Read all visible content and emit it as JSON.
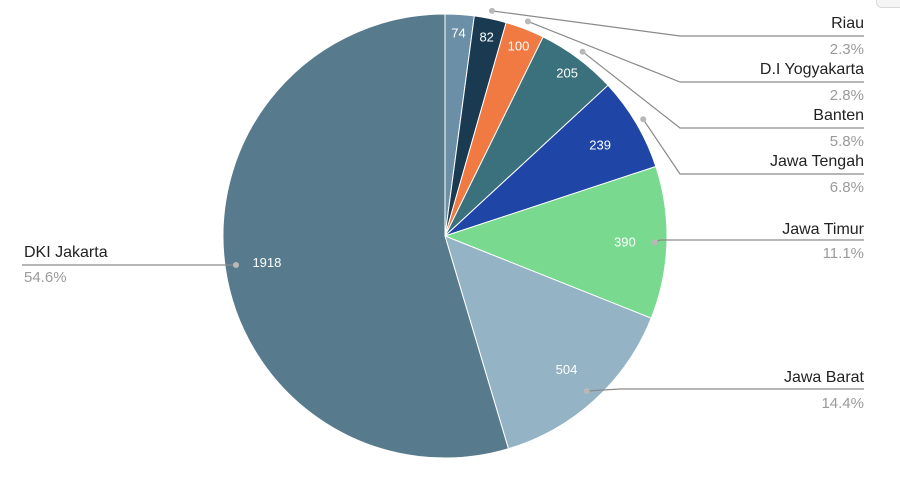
{
  "chart_data": {
    "type": "pie",
    "title": "",
    "slices": [
      {
        "label": "",
        "value": 74,
        "percent": "",
        "color": "#6a8fa6"
      },
      {
        "label": "Riau",
        "value": 82,
        "percent": "2.3%",
        "color": "#1a3a52"
      },
      {
        "label": "D.I Yogyakarta",
        "value": 100,
        "percent": "2.8%",
        "color": "#f07a42"
      },
      {
        "label": "Banten",
        "value": 205,
        "percent": "5.8%",
        "color": "#3a717c"
      },
      {
        "label": "Jawa Tengah",
        "value": 239,
        "percent": "6.8%",
        "color": "#1f46a6"
      },
      {
        "label": "Jawa Timur",
        "value": 390,
        "percent": "11.1%",
        "color": "#78d98f"
      },
      {
        "label": "Jawa Barat",
        "value": 504,
        "percent": "14.4%",
        "color": "#94b4c6"
      },
      {
        "label": "DKI Jakarta",
        "value": 1918,
        "percent": "54.6%",
        "color": "#577b8c"
      }
    ],
    "legend": "callout labels with leader lines"
  }
}
